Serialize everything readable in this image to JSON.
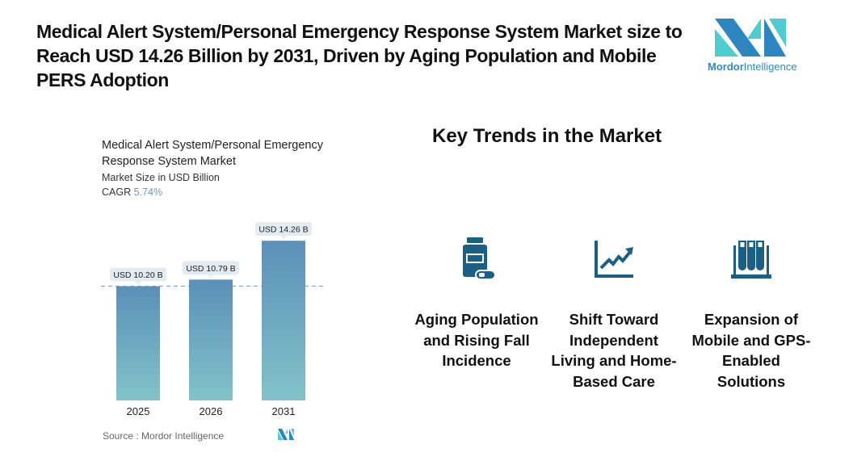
{
  "headline": "Medical Alert System/Personal Emergency Response System Market size to Reach USD 14.26 Billion by 2031, Driven by Aging Population and Mobile PERS Adoption",
  "brand": {
    "name_bold": "Mordor",
    "name_light": "Intelligence",
    "colors": {
      "dark": "#2e86c1",
      "light": "#4ecdd0"
    }
  },
  "chart_data": {
    "type": "bar",
    "title": "Medical Alert System/Personal Emergency Response System Market",
    "subtitle": "Market Size in USD Billion",
    "cagr_label": "CAGR",
    "cagr_value": "5.74%",
    "categories": [
      "2025",
      "2026",
      "2031"
    ],
    "values": [
      10.2,
      10.79,
      14.26
    ],
    "data_labels": [
      "USD 10.20 B",
      "USD 10.79 B",
      "USD 14.26 B"
    ],
    "reference_line": 10.2,
    "xlabel": "",
    "ylabel": "",
    "ylim": [
      0,
      15
    ],
    "grid": false,
    "bar_color_top": "#5b8fb8",
    "bar_color_bottom": "#82c3c9"
  },
  "source": "Source :  Mordor Intelligence",
  "trends": {
    "title": "Key Trends in the Market",
    "icon_color": "#1a5f85",
    "items": [
      {
        "icon": "medicine-bottle-icon",
        "label": "Aging Population and Rising Fall Incidence"
      },
      {
        "icon": "trend-up-chart-icon",
        "label": "Shift Toward Independent Living and Home-Based Care"
      },
      {
        "icon": "test-tubes-rack-icon",
        "label": "Expansion of Mobile and GPS-Enabled Solutions"
      }
    ]
  }
}
